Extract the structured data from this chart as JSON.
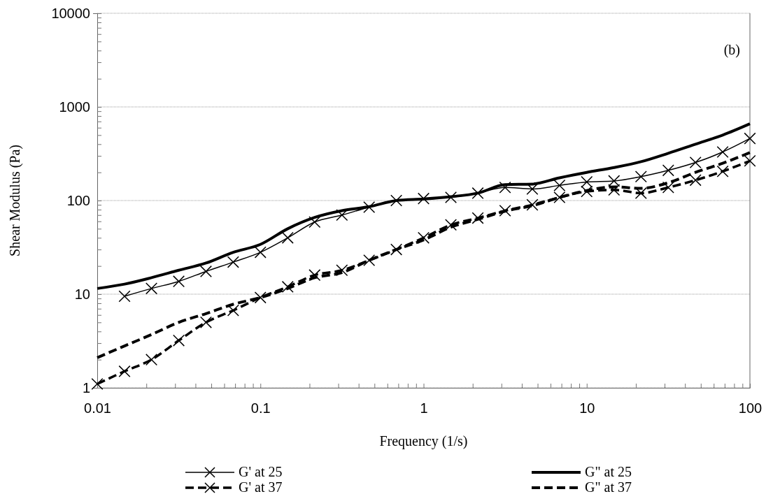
{
  "chart_data": {
    "type": "line",
    "xlabel": "Frequency (1/s)",
    "ylabel": "Shear Modulus (Pa)",
    "annotations": [
      "(b)"
    ],
    "log": "xy",
    "grid": "y",
    "legend": "bottom",
    "xlim": [
      0.01,
      100
    ],
    "ylim": [
      1,
      10000
    ],
    "xticks": [
      0.01,
      {
        "value": 0.02,
        "label": null
      },
      {
        "value": 0.03,
        "label": null
      },
      {
        "value": 0.04,
        "label": null
      },
      {
        "value": 0.05,
        "label": null
      },
      {
        "value": 0.06,
        "label": null
      },
      {
        "value": 0.07,
        "label": null
      },
      {
        "value": 0.08,
        "label": null
      },
      {
        "value": 0.09,
        "label": null
      },
      0.1,
      {
        "value": 0.2,
        "label": null
      },
      {
        "value": 0.3,
        "label": null
      },
      {
        "value": 0.4,
        "label": null
      },
      {
        "value": 0.5,
        "label": null
      },
      {
        "value": 0.6,
        "label": null
      },
      {
        "value": 0.7,
        "label": null
      },
      {
        "value": 0.8,
        "label": null
      },
      {
        "value": 0.9,
        "label": null
      },
      1,
      {
        "value": 2,
        "label": null
      },
      {
        "value": 3,
        "label": null
      },
      {
        "value": 4,
        "label": null
      },
      {
        "value": 5,
        "label": null
      },
      {
        "value": 6,
        "label": null
      },
      {
        "value": 7,
        "label": null
      },
      {
        "value": 8,
        "label": null
      },
      {
        "value": 9,
        "label": null
      },
      10,
      {
        "value": 20,
        "label": null
      },
      {
        "value": 30,
        "label": null
      },
      {
        "value": 40,
        "label": null
      },
      {
        "value": 50,
        "label": null
      },
      {
        "value": 60,
        "label": null
      },
      {
        "value": 70,
        "label": null
      },
      {
        "value": 80,
        "label": null
      },
      {
        "value": 90,
        "label": null
      },
      100
    ],
    "yticks": [
      1,
      {
        "value": 2,
        "label": null
      },
      {
        "value": 3,
        "label": null
      },
      {
        "value": 4,
        "label": null
      },
      {
        "value": 5,
        "label": null
      },
      {
        "value": 6,
        "label": null
      },
      {
        "value": 7,
        "label": null
      },
      {
        "value": 8,
        "label": null
      },
      {
        "value": 9,
        "label": null
      },
      10,
      {
        "value": 20,
        "label": null
      },
      {
        "value": 30,
        "label": null
      },
      {
        "value": 40,
        "label": null
      },
      {
        "value": 50,
        "label": null
      },
      {
        "value": 60,
        "label": null
      },
      {
        "value": 70,
        "label": null
      },
      {
        "value": 80,
        "label": null
      },
      {
        "value": 90,
        "label": null
      },
      100,
      {
        "value": 200,
        "label": null
      },
      {
        "value": 300,
        "label": null
      },
      {
        "value": 400,
        "label": null
      },
      {
        "value": 500,
        "label": null
      },
      {
        "value": 600,
        "label": null
      },
      {
        "value": 700,
        "label": null
      },
      {
        "value": 800,
        "label": null
      },
      {
        "value": 900,
        "label": null
      },
      1000,
      {
        "value": 2000,
        "label": null
      },
      {
        "value": 3000,
        "label": null
      },
      {
        "value": 4000,
        "label": null
      },
      {
        "value": 5000,
        "label": null
      },
      {
        "value": 6000,
        "label": null
      },
      {
        "value": 7000,
        "label": null
      },
      {
        "value": 8000,
        "label": null
      },
      {
        "value": 9000,
        "label": null
      },
      10000
    ],
    "x": [
      0.01,
      0.0147,
      0.0215,
      0.0316,
      0.0464,
      0.0681,
      0.1,
      0.147,
      0.215,
      0.316,
      0.464,
      0.681,
      1,
      1.47,
      2.15,
      3.16,
      4.64,
      6.81,
      10,
      14.7,
      21.5,
      31.6,
      46.4,
      68.1,
      100
    ],
    "series": [
      {
        "name": "G' at 25",
        "color": "#000000",
        "marker": "cross",
        "line_style": "solid",
        "x": [
          0.0147,
          0.0215,
          0.0316,
          0.0464,
          0.0681,
          0.1,
          0.147,
          0.215,
          0.316,
          0.464,
          0.681,
          1,
          1.47,
          2.15,
          3.16,
          4.64,
          6.81,
          10,
          14.7,
          21.5,
          31.6,
          46.4,
          68.1,
          100
        ],
        "values": [
          9.5,
          11.5,
          13.7,
          17.5,
          22,
          28,
          40,
          59,
          70,
          85,
          100,
          105,
          108,
          120,
          138,
          133,
          145,
          158,
          162,
          180,
          210,
          255,
          330,
          460
        ]
      },
      {
        "name": "G\" at 25",
        "color": "#000000",
        "marker": "none",
        "line_style": "solid",
        "values": [
          11.5,
          12.8,
          15,
          18,
          21.5,
          28,
          34,
          50,
          66,
          78,
          86,
          100,
          104,
          110,
          120,
          148,
          150,
          175,
          200,
          225,
          260,
          320,
          400,
          500,
          660
        ]
      },
      {
        "name": "G' at 37",
        "color": "#000000",
        "marker": "cross",
        "line_style": "dashed",
        "values": [
          1.1,
          1.5,
          2.0,
          3.2,
          5.0,
          6.7,
          9.2,
          12,
          16,
          18,
          23,
          30,
          40,
          55,
          65,
          78,
          90,
          108,
          125,
          130,
          120,
          138,
          165,
          205,
          265
        ]
      },
      {
        "name": "G\" at 37",
        "color": "#000000",
        "marker": "none",
        "line_style": "dashed",
        "values": [
          2.1,
          2.8,
          3.7,
          5.0,
          6.2,
          7.8,
          9.2,
          11.5,
          15,
          17,
          23,
          30,
          38,
          52,
          63,
          77,
          88,
          108,
          128,
          140,
          135,
          155,
          200,
          250,
          325
        ]
      }
    ]
  }
}
